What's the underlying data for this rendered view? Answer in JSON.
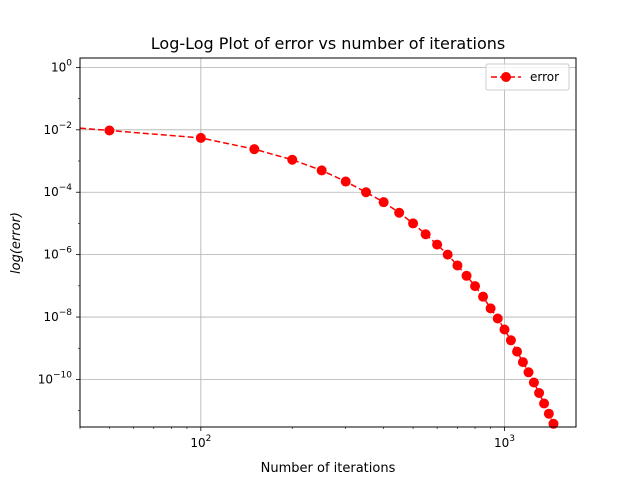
{
  "chart_data": {
    "type": "line",
    "title": "Log-Log Plot of error vs number of iterations",
    "xlabel": "Number of iterations",
    "ylabel": "log(error)",
    "xscale": "log",
    "yscale": "log",
    "xlim": [
      40,
      1720
    ],
    "ylim": [
      3e-12,
      2
    ],
    "grid": true,
    "legend": "top-right",
    "x_ticks": [
      {
        "value": 100,
        "base": "10",
        "exp": "2"
      },
      {
        "value": 1000,
        "base": "10",
        "exp": "3"
      }
    ],
    "y_ticks": [
      {
        "value": 1,
        "base": "10",
        "exp": "0"
      },
      {
        "value": 0.01,
        "base": "10",
        "exp": "−2"
      },
      {
        "value": 0.0001,
        "base": "10",
        "exp": "−4"
      },
      {
        "value": 1e-06,
        "base": "10",
        "exp": "−6"
      },
      {
        "value": 1e-08,
        "base": "10",
        "exp": "−8"
      },
      {
        "value": 1e-10,
        "base": "10",
        "exp": "−10"
      }
    ],
    "series": [
      {
        "name": "error",
        "color": "#ff0000",
        "line_style": "dashed",
        "marker": "circle",
        "x": [
          50,
          100,
          150,
          200,
          250,
          300,
          350,
          400,
          450,
          500,
          550,
          600,
          650,
          700,
          750,
          800,
          850,
          900,
          950,
          1000,
          1050,
          1100,
          1150,
          1200,
          1250,
          1300,
          1350,
          1400,
          1450
        ],
        "y": [
          0.0095,
          0.0055,
          0.0024,
          0.0011,
          0.0005,
          0.00022,
          0.0001,
          4.8e-05,
          2.2e-05,
          1e-05,
          4.5e-06,
          2.1e-06,
          1e-06,
          4.5e-07,
          2.1e-07,
          9.8e-08,
          4.5e-08,
          1.9e-08,
          9e-09,
          4e-09,
          1.8e-09,
          7.8e-10,
          3.6e-10,
          1.7e-10,
          8e-11,
          3.7e-11,
          1.7e-11,
          8e-12,
          3.8e-12
        ]
      }
    ]
  }
}
